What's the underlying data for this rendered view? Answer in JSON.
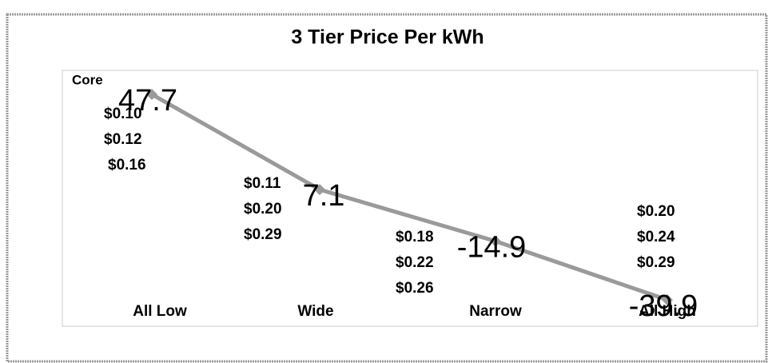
{
  "chart_data": {
    "type": "line",
    "title": "3 Tier Price Per kWh",
    "series_label": "Core",
    "categories": [
      "All Low",
      "Wide",
      "Narrow",
      "All High"
    ],
    "series": [
      {
        "name": "Core",
        "color": "#9a9a9a",
        "values": [
          47.7,
          7.1,
          -14.9,
          -39.9
        ]
      }
    ],
    "price_labels": [
      [
        "$0.10",
        "$0.12",
        "$0.16"
      ],
      [
        "$0.11",
        "$0.20",
        "$0.29"
      ],
      [
        "$0.18",
        "$0.22",
        "$0.26"
      ],
      [
        "$0.20",
        "$0.24",
        "$0.29"
      ]
    ]
  }
}
